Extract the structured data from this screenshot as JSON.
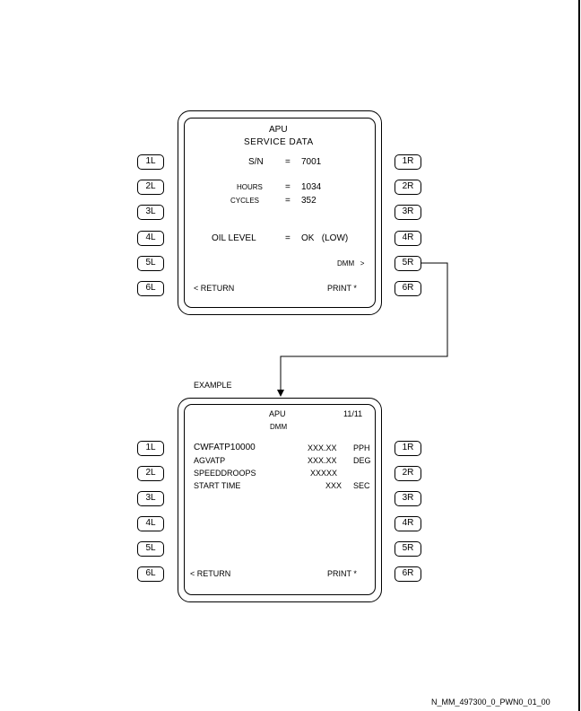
{
  "screen1": {
    "title": "APU",
    "subtitle": "SERVICE DATA",
    "sn_label": "S/N",
    "sn_eq": "=",
    "sn_value": "7001",
    "hours_label": "HOURS",
    "hours_eq": "=",
    "hours_value": "1034",
    "cycles_label": "CYCLES",
    "cycles_eq": "=",
    "cycles_value": "352",
    "oil_label": "OIL LEVEL",
    "oil_eq": "=",
    "oil_value": "OK   (LOW)",
    "dmm_prompt": "DMM   >",
    "return_label": "< RETURN",
    "print_label": "PRINT *"
  },
  "example_label": "EXAMPLE",
  "screen2": {
    "title": "APU",
    "page": "11/11",
    "subtitle": "DMM",
    "rows": [
      {
        "label": "CWFATP10000",
        "value": "XXX.XX",
        "unit": "PPH"
      },
      {
        "label": "AGVATP",
        "value": "XXX.XX",
        "unit": "DEG"
      },
      {
        "label": "SPEEDDROOPS",
        "value": "XXXXX",
        "unit": ""
      },
      {
        "label": "START TIME",
        "value": "XXX",
        "unit": "SEC"
      }
    ],
    "return_label": "< RETURN",
    "print_label": "PRINT *"
  },
  "keys": {
    "left": [
      "1L",
      "2L",
      "3L",
      "4L",
      "5L",
      "6L"
    ],
    "right": [
      "1R",
      "2R",
      "3R",
      "4R",
      "5R",
      "6R"
    ]
  },
  "figure_id": "N_MM_497300_0_PWN0_01_00"
}
